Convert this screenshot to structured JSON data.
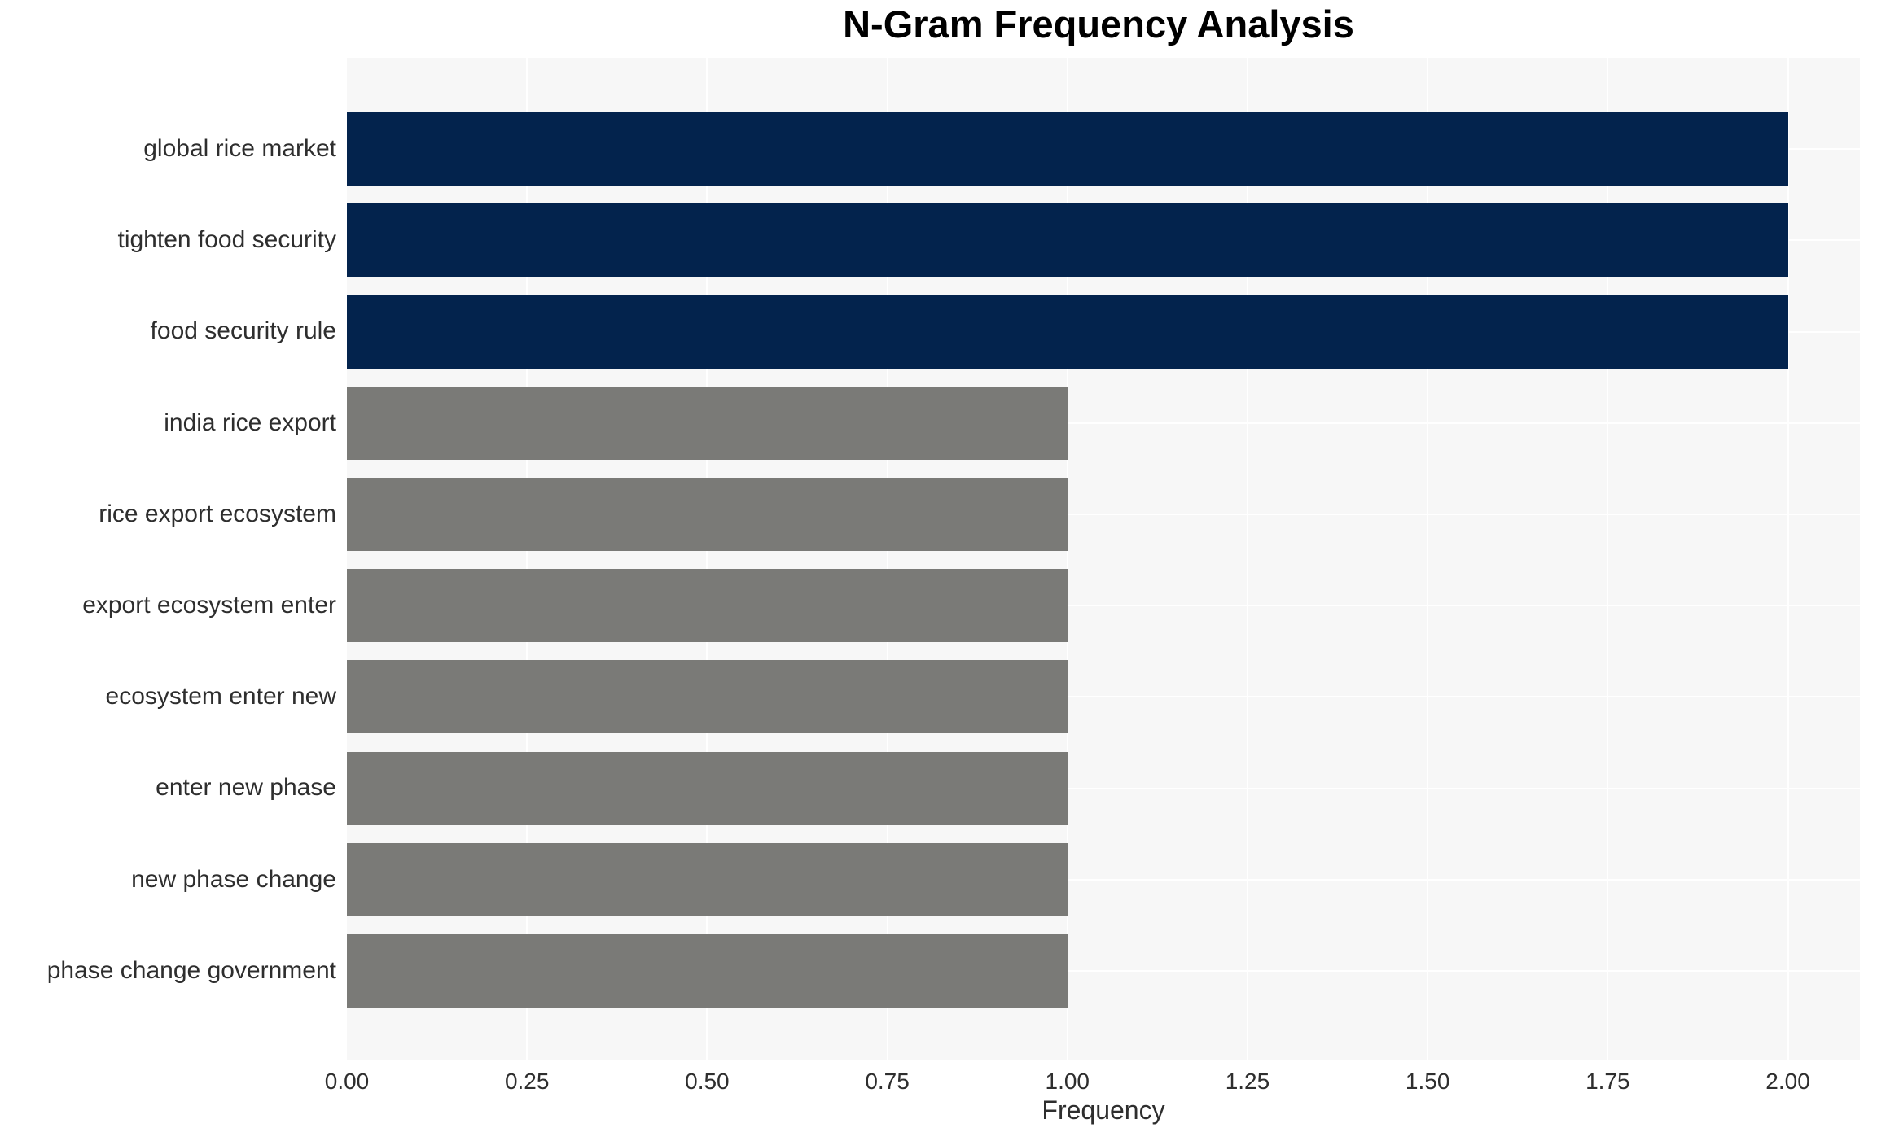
{
  "chart_data": {
    "type": "bar",
    "orientation": "horizontal",
    "title": "N-Gram Frequency Analysis",
    "xlabel": "Frequency",
    "ylabel": "",
    "categories": [
      "global rice market",
      "tighten food security",
      "food security rule",
      "india rice export",
      "rice export ecosystem",
      "export ecosystem enter",
      "ecosystem enter new",
      "enter new phase",
      "new phase change",
      "phase change government"
    ],
    "values": [
      2,
      2,
      2,
      1,
      1,
      1,
      1,
      1,
      1,
      1
    ],
    "x_tick_labels": [
      "0.00",
      "0.25",
      "0.50",
      "0.75",
      "1.00",
      "1.25",
      "1.50",
      "1.75",
      "2.00"
    ],
    "xlim": [
      0,
      2.1
    ],
    "grid": true,
    "legend": false,
    "bar_colors": [
      "#03234d",
      "#03234d",
      "#03234d",
      "#7a7a77",
      "#7a7a77",
      "#7a7a77",
      "#7a7a77",
      "#7a7a77",
      "#7a7a77",
      "#7a7a77"
    ],
    "colors": {
      "plot_background": "#f7f7f7",
      "grid_line": "#ffffff",
      "tick_text": "#2e2e2e",
      "title_text": "#000000"
    }
  }
}
